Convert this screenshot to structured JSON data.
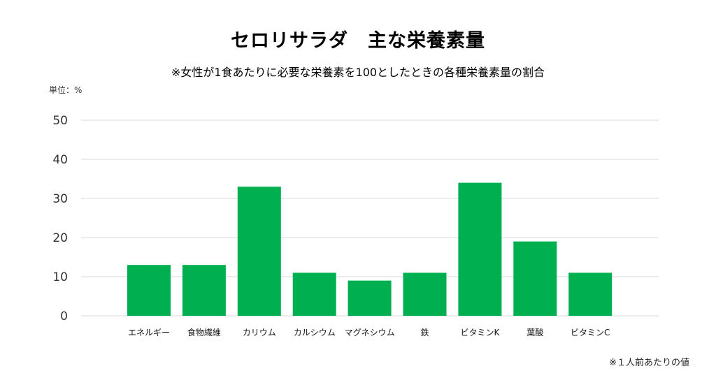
{
  "chart_data": {
    "type": "bar",
    "title": "セロリサラダ　主な栄養素量",
    "subtitle": "※女性が1食あたりに必要な栄養素を100としたときの各種栄養素量の割合",
    "unit_label": "単位：%",
    "footnote": "※１人前あたりの値",
    "categories": [
      "エネルギー",
      "食物繊維",
      "カリウム",
      "カルシウム",
      "マグネシウム",
      "鉄",
      "ビタミンK",
      "葉酸",
      "ビタミンC"
    ],
    "values": [
      13,
      13,
      33,
      11,
      9,
      11,
      34,
      19,
      11
    ],
    "ylim": [
      0,
      50
    ],
    "yticks": [
      0,
      10,
      20,
      30,
      40,
      50
    ],
    "grid": true,
    "bar_color": "#00b050",
    "grid_color": "#d9d9d9"
  }
}
